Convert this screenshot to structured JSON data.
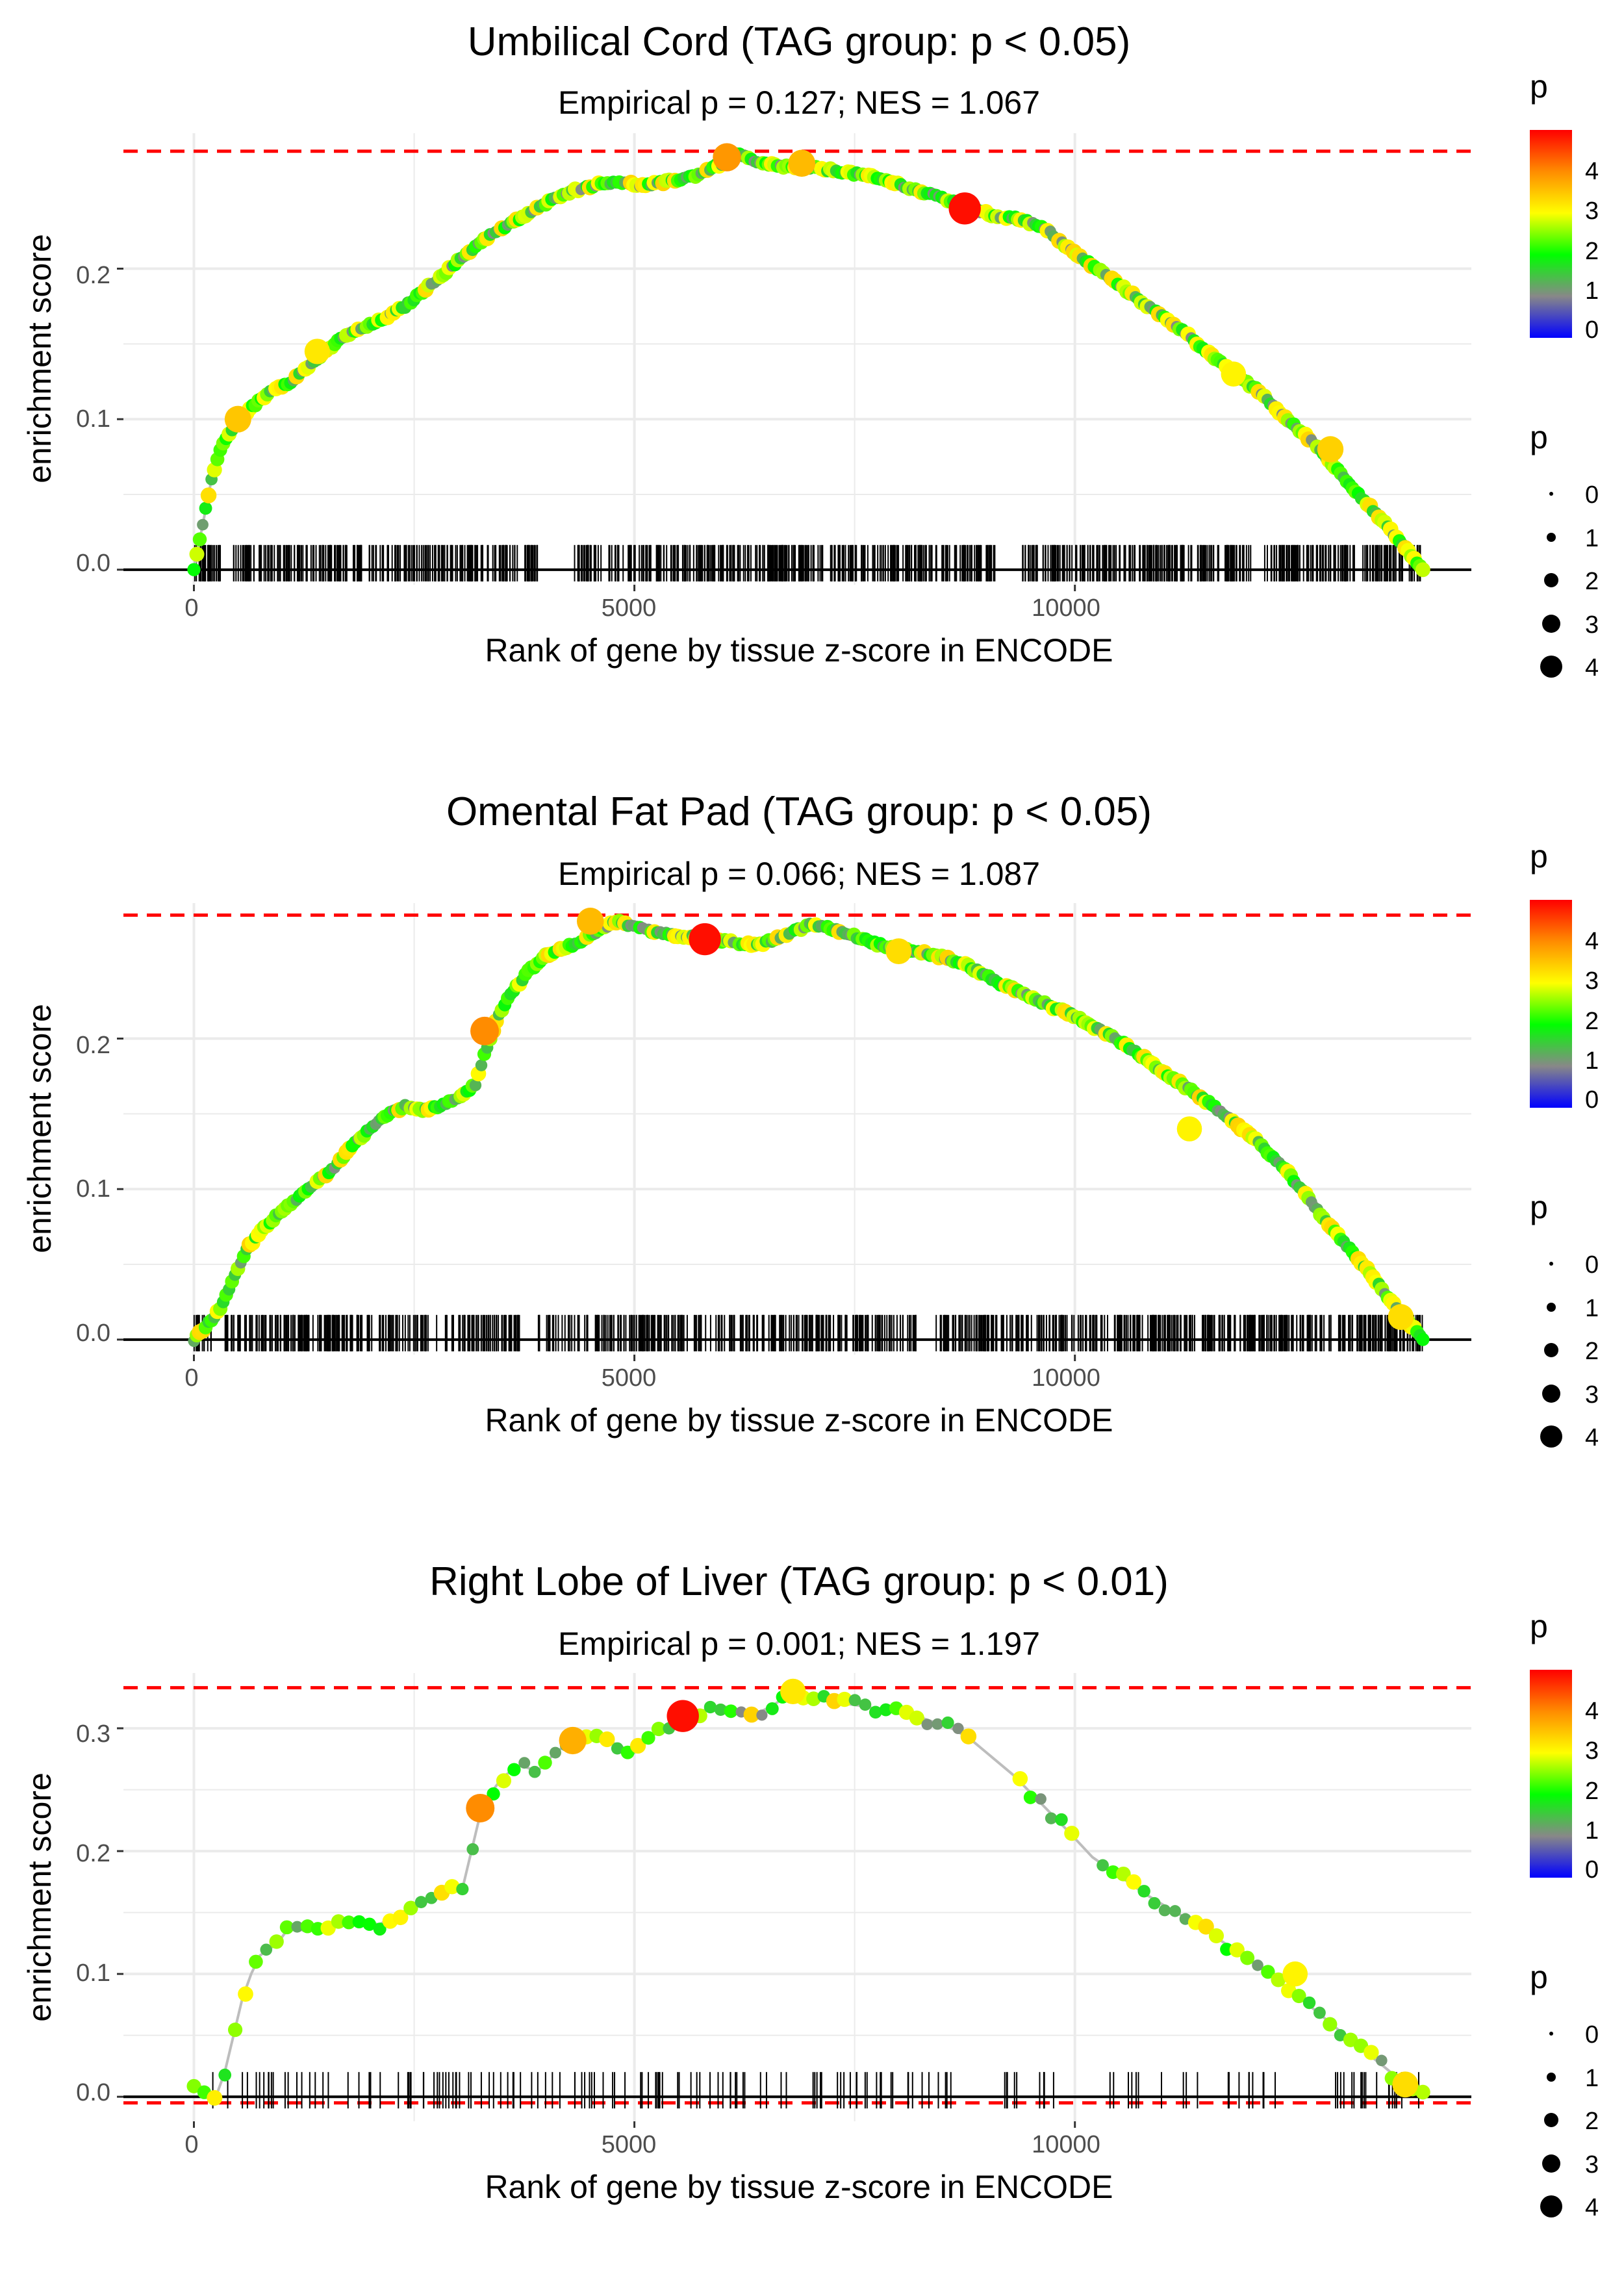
{
  "colors": {
    "scale": [
      "#0000ff",
      "#888888",
      "#00ff00",
      "#ffff00",
      "#ff8c00",
      "#ff0000"
    ],
    "reference_line": "#ff0000",
    "curve_line": "#bdbdbd",
    "gridline": "#ebebeb"
  },
  "chart_data": [
    {
      "type": "line",
      "title": "Umbilical Cord (TAG group: p < 0.05)",
      "subtitle": "Empirical p = 0.127; NES = 1.067",
      "xlabel": "Rank of gene by tissue z-score in ENCODE",
      "ylabel": "enrichment score",
      "xlim": [
        -800,
        14500
      ],
      "ylim": [
        -0.01,
        0.29
      ],
      "x_ticks": [
        0,
        5000,
        10000
      ],
      "x_tick_labels": [
        "0",
        "5000",
        "10000"
      ],
      "y_ticks": [
        0.0,
        0.1,
        0.2
      ],
      "y_tick_labels": [
        "0.0",
        "0.1",
        "0.2"
      ],
      "reference_lines": [
        0.278
      ],
      "point_density": "dense",
      "running_es": {
        "x": [
          0,
          100,
          200,
          300,
          500,
          700,
          900,
          1100,
          1300,
          1500,
          1700,
          1900,
          2100,
          2400,
          2700,
          3000,
          3300,
          3600,
          3900,
          4200,
          4500,
          4800,
          5100,
          5400,
          5700,
          6000,
          6150,
          6400,
          6700,
          7000,
          7300,
          7600,
          7900,
          8200,
          8500,
          8800,
          9100,
          9400,
          9700,
          10000,
          10300,
          10600,
          10900,
          11200,
          11500,
          11800,
          12100,
          12400,
          12700,
          13000,
          13300,
          13600,
          13950
        ],
        "y": [
          0.0,
          0.03,
          0.06,
          0.08,
          0.1,
          0.11,
          0.12,
          0.125,
          0.135,
          0.145,
          0.155,
          0.16,
          0.165,
          0.175,
          0.19,
          0.205,
          0.22,
          0.23,
          0.24,
          0.25,
          0.255,
          0.258,
          0.255,
          0.258,
          0.262,
          0.27,
          0.277,
          0.27,
          0.268,
          0.267,
          0.265,
          0.262,
          0.258,
          0.252,
          0.247,
          0.24,
          0.235,
          0.233,
          0.225,
          0.21,
          0.198,
          0.185,
          0.172,
          0.16,
          0.145,
          0.13,
          0.118,
          0.1,
          0.085,
          0.065,
          0.045,
          0.025,
          0.0
        ]
      },
      "highlight_points": [
        {
          "x": 500,
          "y": 0.1,
          "p": 3.5
        },
        {
          "x": 1400,
          "y": 0.145,
          "p": 3.2
        },
        {
          "x": 6050,
          "y": 0.274,
          "p": 3.9
        },
        {
          "x": 6900,
          "y": 0.27,
          "p": 3.6
        },
        {
          "x": 8750,
          "y": 0.24,
          "p": 4.9
        },
        {
          "x": 11800,
          "y": 0.13,
          "p": 3.1
        },
        {
          "x": 12900,
          "y": 0.08,
          "p": 3.4
        }
      ],
      "gene_ticks": {
        "count": 900,
        "x_range": [
          0,
          13950
        ],
        "gap_ranges": [
          [
            300,
            450
          ],
          [
            3900,
            4300
          ],
          [
            9100,
            9400
          ],
          [
            12000,
            12150
          ]
        ]
      },
      "legend": {
        "color": {
          "title": "p",
          "ticks": [
            0,
            1,
            2,
            3,
            4
          ],
          "tick_labels": [
            "0",
            "1",
            "2",
            "3",
            "4"
          ]
        },
        "size": {
          "title": "p",
          "values": [
            0,
            1,
            2,
            3,
            4
          ],
          "labels": [
            "0",
            "1",
            "2",
            "3",
            "4"
          ]
        }
      }
    },
    {
      "type": "line",
      "title": "Omental Fat Pad (TAG group: p < 0.05)",
      "subtitle": "Empirical p = 0.066; NES = 1.087",
      "xlabel": "Rank of gene by tissue z-score in ENCODE",
      "ylabel": "enrichment score",
      "xlim": [
        -800,
        14500
      ],
      "ylim": [
        -0.01,
        0.29
      ],
      "x_ticks": [
        0,
        5000,
        10000
      ],
      "x_tick_labels": [
        "0",
        "5000",
        "10000"
      ],
      "y_ticks": [
        0.0,
        0.1,
        0.2
      ],
      "y_tick_labels": [
        "0.0",
        "0.1",
        "0.2"
      ],
      "reference_lines": [
        0.282
      ],
      "point_density": "dense",
      "running_es": {
        "x": [
          0,
          150,
          300,
          450,
          600,
          800,
          1000,
          1200,
          1400,
          1600,
          1800,
          2000,
          2200,
          2400,
          2600,
          2800,
          3000,
          3200,
          3300,
          3450,
          3600,
          3800,
          4000,
          4200,
          4400,
          4600,
          4800,
          5000,
          5300,
          5600,
          5850,
          6100,
          6400,
          6700,
          7000,
          7300,
          7600,
          7900,
          8200,
          8500,
          8800,
          9100,
          9400,
          9700,
          10000,
          10300,
          10600,
          10900,
          11200,
          11500,
          11800,
          12100,
          12400,
          12700,
          13000,
          13300,
          13600,
          13950
        ],
        "y": [
          0.0,
          0.01,
          0.02,
          0.04,
          0.06,
          0.075,
          0.085,
          0.095,
          0.105,
          0.115,
          0.13,
          0.14,
          0.15,
          0.155,
          0.152,
          0.155,
          0.16,
          0.17,
          0.19,
          0.215,
          0.23,
          0.245,
          0.255,
          0.26,
          0.265,
          0.272,
          0.278,
          0.274,
          0.27,
          0.268,
          0.266,
          0.264,
          0.262,
          0.268,
          0.276,
          0.272,
          0.266,
          0.26,
          0.258,
          0.254,
          0.248,
          0.238,
          0.23,
          0.222,
          0.215,
          0.205,
          0.195,
          0.182,
          0.17,
          0.158,
          0.145,
          0.13,
          0.112,
          0.09,
          0.068,
          0.048,
          0.025,
          0.0
        ]
      },
      "highlight_points": [
        {
          "x": 3300,
          "y": 0.205,
          "p": 4.0
        },
        {
          "x": 4500,
          "y": 0.278,
          "p": 3.6
        },
        {
          "x": 5800,
          "y": 0.266,
          "p": 4.9
        },
        {
          "x": 8000,
          "y": 0.258,
          "p": 3.3
        },
        {
          "x": 11300,
          "y": 0.14,
          "p": 3.1
        },
        {
          "x": 13700,
          "y": 0.015,
          "p": 3.3
        }
      ],
      "gene_ticks": {
        "count": 880,
        "x_range": [
          0,
          13950
        ],
        "gap_ranges": [
          [
            200,
            350
          ],
          [
            3700,
            3900
          ],
          [
            8200,
            8400
          ]
        ]
      },
      "legend": {
        "color": {
          "title": "p",
          "ticks": [
            0,
            1,
            2,
            3,
            4
          ],
          "tick_labels": [
            "0",
            "1",
            "2",
            "3",
            "4"
          ]
        },
        "size": {
          "title": "p",
          "values": [
            0,
            1,
            2,
            3,
            4
          ],
          "labels": [
            "0",
            "1",
            "2",
            "3",
            "4"
          ]
        }
      }
    },
    {
      "type": "line",
      "title": "Right Lobe of Liver (TAG group: p < 0.01)",
      "subtitle": "Empirical p = 0.001; NES = 1.197",
      "xlabel": "Rank of gene by tissue z-score in ENCODE",
      "ylabel": "enrichment score",
      "xlim": [
        -800,
        14500
      ],
      "ylim": [
        -0.02,
        0.345
      ],
      "x_ticks": [
        0,
        5000,
        10000
      ],
      "x_tick_labels": [
        "0",
        "5000",
        "10000"
      ],
      "y_ticks": [
        0.0,
        0.1,
        0.2,
        0.3
      ],
      "y_tick_labels": [
        "0.0",
        "0.1",
        "0.2",
        "0.3"
      ],
      "reference_lines": [
        0.333,
        -0.005
      ],
      "point_density": "sparse",
      "running_es": {
        "x": [
          0,
          250,
          350,
          450,
          550,
          650,
          750,
          850,
          950,
          1100,
          1250,
          1400,
          1550,
          1700,
          1900,
          2100,
          2300,
          2500,
          2700,
          2900,
          3050,
          3150,
          3250,
          3350,
          3500,
          3700,
          3900,
          4100,
          4300,
          4500,
          4700,
          4850,
          5000,
          5150,
          5300,
          5450,
          5600,
          5800,
          6000,
          6200,
          6400,
          6600,
          6800,
          7000,
          7200,
          7400,
          7600,
          7800,
          8000,
          8200,
          8400,
          8600,
          8800,
          9000,
          9300,
          9600,
          9900,
          10200,
          10500,
          10800,
          11100,
          11400,
          11700,
          12000,
          12300,
          12600,
          12900,
          13200,
          13500,
          13750,
          13950
        ],
        "y": [
          0.012,
          0.0,
          0.02,
          0.05,
          0.08,
          0.1,
          0.115,
          0.12,
          0.125,
          0.14,
          0.135,
          0.14,
          0.138,
          0.142,
          0.145,
          0.14,
          0.148,
          0.155,
          0.16,
          0.175,
          0.17,
          0.2,
          0.23,
          0.245,
          0.26,
          0.27,
          0.265,
          0.28,
          0.29,
          0.295,
          0.29,
          0.285,
          0.28,
          0.29,
          0.3,
          0.305,
          0.31,
          0.315,
          0.318,
          0.315,
          0.312,
          0.32,
          0.33,
          0.325,
          0.322,
          0.32,
          0.318,
          0.315,
          0.312,
          0.31,
          0.305,
          0.3,
          0.292,
          0.28,
          0.262,
          0.24,
          0.218,
          0.195,
          0.18,
          0.165,
          0.152,
          0.14,
          0.125,
          0.11,
          0.095,
          0.078,
          0.06,
          0.042,
          0.025,
          0.01,
          0.005
        ]
      },
      "highlight_points": [
        {
          "x": 3250,
          "y": 0.235,
          "p": 4.0
        },
        {
          "x": 4300,
          "y": 0.29,
          "p": 3.7
        },
        {
          "x": 5550,
          "y": 0.31,
          "p": 4.9
        },
        {
          "x": 6800,
          "y": 0.33,
          "p": 3.2
        },
        {
          "x": 12500,
          "y": 0.1,
          "p": 3.1
        },
        {
          "x": 13750,
          "y": 0.01,
          "p": 3.3
        }
      ],
      "gene_ticks": {
        "count": 170,
        "x_range": [
          200,
          13950
        ],
        "gap_ranges": [
          [
            8600,
            9200
          ],
          [
            9800,
            10300
          ],
          [
            11400,
            11700
          ],
          [
            12400,
            12900
          ]
        ]
      },
      "legend": {
        "color": {
          "title": "p",
          "ticks": [
            0,
            1,
            2,
            3,
            4
          ],
          "tick_labels": [
            "0",
            "1",
            "2",
            "3",
            "4"
          ]
        },
        "size": {
          "title": "p",
          "values": [
            0,
            1,
            2,
            3,
            4
          ],
          "labels": [
            "0",
            "1",
            "2",
            "3",
            "4"
          ]
        }
      }
    }
  ]
}
